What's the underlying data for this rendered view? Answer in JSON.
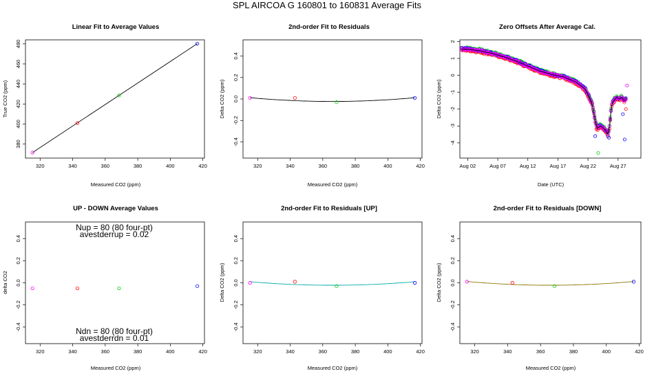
{
  "suptitle": "SPL   AIRCOA G   160801 to 160831   Average Fits",
  "colors": {
    "red": "#ff0000",
    "green": "#00cc00",
    "blue": "#0000ff",
    "magenta": "#ff00ff",
    "black": "#000000",
    "teal": "#00aaaa",
    "olive": "#8b7500"
  },
  "chart_data": [
    {
      "id": "linear",
      "type": "scatter",
      "title": "Linear Fit to Average Values",
      "xlabel": "Measured CO2 (ppm)",
      "ylabel": "True CO2 (ppm)",
      "xlim": [
        311,
        421
      ],
      "ylim": [
        366,
        484
      ],
      "xticks": [
        "320",
        "340",
        "360",
        "380",
        "400",
        "420"
      ],
      "yticks": [
        "380",
        "400",
        "420",
        "440",
        "460",
        "480"
      ],
      "points": [
        {
          "x": 315.3,
          "y": 371.5,
          "color": "magenta"
        },
        {
          "x": 342.9,
          "y": 401.0,
          "color": "red"
        },
        {
          "x": 368.5,
          "y": 428.5,
          "color": "green"
        },
        {
          "x": 416.6,
          "y": 480.2,
          "color": "blue"
        }
      ],
      "line": {
        "type": "linear",
        "x": [
          315.3,
          416.6
        ],
        "y": [
          371.5,
          480.2
        ],
        "color": "black"
      }
    },
    {
      "id": "resid",
      "type": "scatter",
      "title": "2nd-order Fit to Residuals",
      "xlabel": "Measured CO2 (ppm)",
      "ylabel": "Delta CO2 (ppm)",
      "xlim": [
        311,
        421
      ],
      "ylim": [
        -0.55,
        0.55
      ],
      "xticks": [
        "320",
        "340",
        "360",
        "380",
        "400",
        "420"
      ],
      "yticks": [
        "-0.4",
        "-0.2",
        "0.0",
        "0.2",
        "0.4"
      ],
      "points": [
        {
          "x": 315.3,
          "y": 0.01,
          "color": "magenta"
        },
        {
          "x": 342.9,
          "y": 0.01,
          "color": "red"
        },
        {
          "x": 368.5,
          "y": -0.03,
          "color": "green"
        },
        {
          "x": 416.6,
          "y": 0.01,
          "color": "blue"
        }
      ],
      "curve": {
        "type": "quadratic",
        "x": [
          315.3,
          366.0,
          416.6
        ],
        "y": [
          0.012,
          -0.023,
          0.012
        ],
        "color": "black"
      }
    },
    {
      "id": "zero",
      "type": "scatter",
      "title": "Zero Offsets After Average Cal.",
      "xlabel": "Date (UTC)",
      "ylabel": "Delta CO2 (ppm)",
      "xlim": [
        -0.3,
        29.8
      ],
      "ylim": [
        -4.9,
        2.1
      ],
      "xticks": [
        "Aug 02",
        "Aug 07",
        "Aug 12",
        "Aug 17",
        "Aug 22",
        "Aug 27"
      ],
      "xtick_values": [
        1,
        6,
        11,
        16,
        21,
        26
      ],
      "yticks": [
        "-4",
        "-3",
        "-2",
        "-1",
        "0",
        "1",
        "2"
      ],
      "trend": {
        "x": [
          0.0,
          1.0,
          3.0,
          5.0,
          7.0,
          9.0,
          11.0,
          13.0,
          15.0,
          17.0,
          19.0,
          20.5,
          21.2,
          21.7,
          22.0,
          22.3,
          22.6,
          23.0,
          23.5,
          24.0,
          24.3,
          24.6,
          24.9,
          25.1,
          25.4,
          25.8,
          26.2,
          26.6,
          27.0,
          27.3
        ],
        "y": [
          1.55,
          1.55,
          1.45,
          1.3,
          1.1,
          0.85,
          0.55,
          0.25,
          0.05,
          -0.1,
          -0.4,
          -0.8,
          -1.3,
          -1.7,
          -2.3,
          -2.85,
          -3.15,
          -3.0,
          -3.1,
          -3.3,
          -3.55,
          -3.0,
          -1.8,
          -1.6,
          -1.45,
          -1.3,
          -1.4,
          -1.3,
          -1.5,
          -1.4
        ]
      },
      "outliers": [
        {
          "x": 22.7,
          "y": -4.6,
          "color": "green"
        },
        {
          "x": 27.1,
          "y": -3.8,
          "color": "blue"
        },
        {
          "x": 27.5,
          "y": -0.6,
          "color": "magenta"
        },
        {
          "x": 27.3,
          "y": -2.0,
          "color": "red"
        },
        {
          "x": 22.2,
          "y": -3.6,
          "color": "blue"
        },
        {
          "x": 22.4,
          "y": -3.2,
          "color": "red"
        },
        {
          "x": 24.5,
          "y": -3.7,
          "color": "blue"
        },
        {
          "x": 26.8,
          "y": -2.3,
          "color": "blue"
        }
      ]
    },
    {
      "id": "updown",
      "type": "scatter",
      "title": "UP - DOWN Average Values",
      "xlabel": "Measured CO2 (ppm)",
      "ylabel": "delta CO2",
      "xlim": [
        311,
        421
      ],
      "ylim": [
        -0.55,
        0.55
      ],
      "xticks": [
        "320",
        "340",
        "360",
        "380",
        "400",
        "420"
      ],
      "yticks": [
        "-0.4",
        "-0.2",
        "0.0",
        "0.2",
        "0.4"
      ],
      "points": [
        {
          "x": 315.3,
          "y": -0.05,
          "color": "magenta"
        },
        {
          "x": 342.9,
          "y": -0.05,
          "color": "red"
        },
        {
          "x": 368.5,
          "y": -0.05,
          "color": "green"
        },
        {
          "x": 416.6,
          "y": -0.03,
          "color": "blue"
        }
      ],
      "annotations": {
        "nup": "Nup = 80 (80 four-pt)",
        "avestderrup": "avestderrup =  0.02",
        "ndn": "Ndn = 80 (80 four-pt)",
        "avestderrdn": "avestderrdn =  0.01"
      }
    },
    {
      "id": "residup",
      "type": "scatter",
      "title": "2nd-order Fit to Residuals [UP]",
      "xlabel": "Measured CO2 (ppm)",
      "ylabel": "Delta CO2 (ppm)",
      "xlim": [
        311,
        421
      ],
      "ylim": [
        -0.55,
        0.55
      ],
      "xticks": [
        "320",
        "340",
        "360",
        "380",
        "400",
        "420"
      ],
      "yticks": [
        "-0.4",
        "-0.2",
        "0.0",
        "0.2",
        "0.4"
      ],
      "points": [
        {
          "x": 315.3,
          "y": 0.0,
          "color": "magenta"
        },
        {
          "x": 342.9,
          "y": 0.01,
          "color": "red"
        },
        {
          "x": 368.5,
          "y": -0.03,
          "color": "green"
        },
        {
          "x": 416.6,
          "y": 0.0,
          "color": "blue"
        }
      ],
      "curve": {
        "type": "quadratic",
        "x": [
          315.3,
          366.0,
          416.6
        ],
        "y": [
          0.01,
          -0.022,
          0.01
        ],
        "color": "teal"
      }
    },
    {
      "id": "residdn",
      "type": "scatter",
      "title": "2nd-order Fit to Residuals [DOWN]",
      "xlabel": "Measured CO2 (ppm)",
      "ylabel": "Delta CO2 (ppm)",
      "xlim": [
        311,
        421
      ],
      "ylim": [
        -0.55,
        0.55
      ],
      "xticks": [
        "320",
        "340",
        "360",
        "380",
        "400",
        "420"
      ],
      "yticks": [
        "-0.4",
        "-0.2",
        "0.0",
        "0.2",
        "0.4"
      ],
      "points": [
        {
          "x": 315.3,
          "y": 0.01,
          "color": "magenta"
        },
        {
          "x": 342.9,
          "y": 0.0,
          "color": "red"
        },
        {
          "x": 368.5,
          "y": -0.03,
          "color": "green"
        },
        {
          "x": 416.6,
          "y": 0.01,
          "color": "blue"
        }
      ],
      "curve": {
        "type": "quadratic",
        "x": [
          315.3,
          366.0,
          416.6
        ],
        "y": [
          0.012,
          -0.022,
          0.012
        ],
        "color": "olive"
      }
    }
  ]
}
